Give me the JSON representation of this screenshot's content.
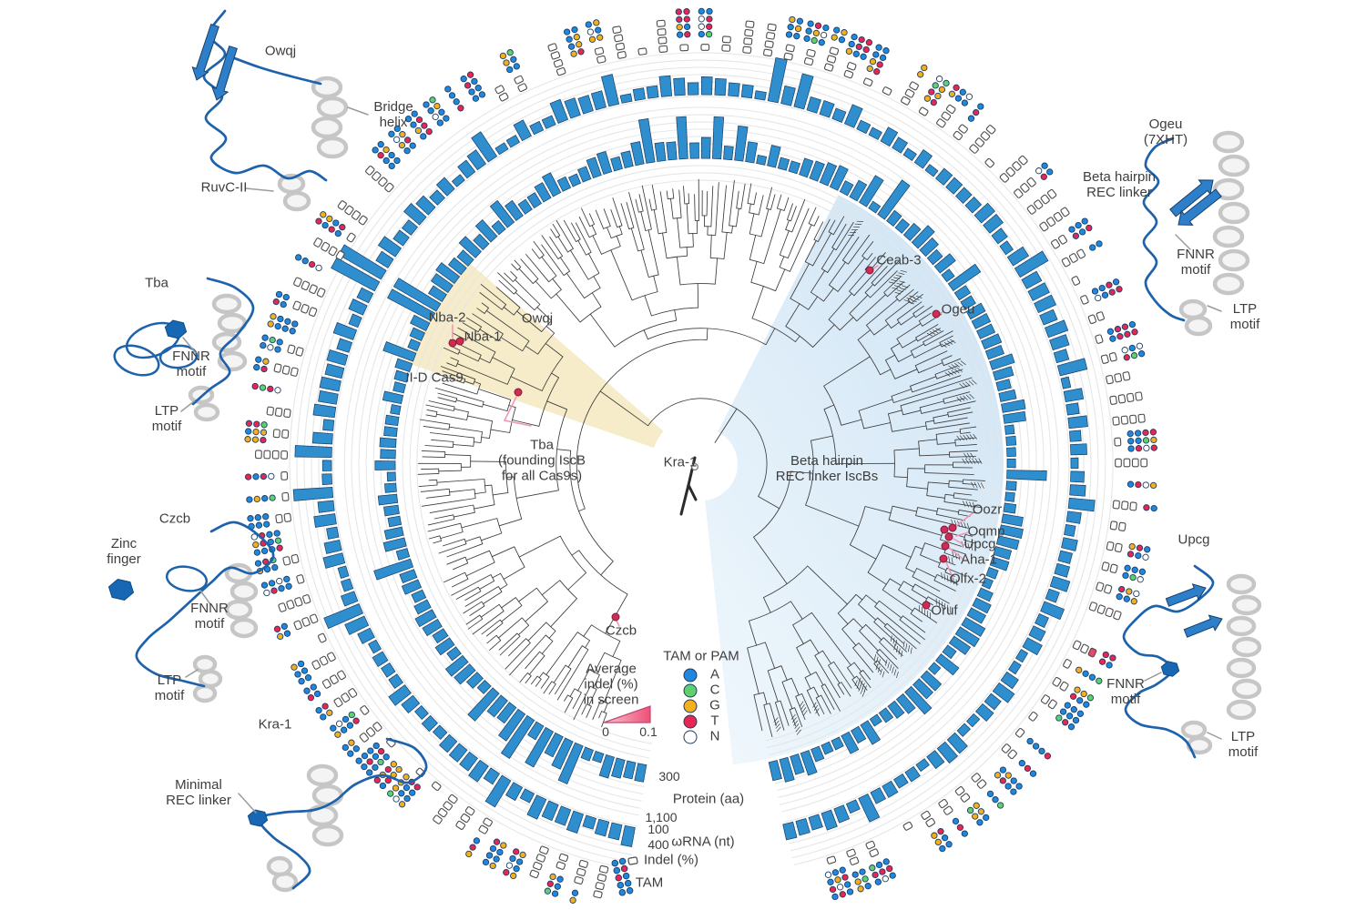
{
  "tree": {
    "labels": [
      "Nba-2",
      "Nba-1",
      "Owqj",
      "II-D Cas9",
      "Tba\n(founding IscB\nfor all Cas9s)",
      "Kra-1",
      "Czcb",
      "Ceab-3",
      "Ogeu",
      "Beta hairpin\nREC linker IscBs",
      "Oozr",
      "Oqmp",
      "Upcg",
      "Aha-1",
      "Olfx-2",
      "Oruf"
    ],
    "highlights": [
      {
        "clade": "II-D Cas9",
        "color": "#f6ecc9"
      },
      {
        "clade": "Beta hairpin REC linker IscBs",
        "color": "#d8e9f6"
      }
    ]
  },
  "structures": [
    {
      "name": "Owqj",
      "annotations": [
        "Bridge\nhelix",
        "RuvC-II"
      ]
    },
    {
      "name": "Tba",
      "annotations": [
        "FNNR\nmotif",
        "LTP\nmotif"
      ]
    },
    {
      "name": "Czcb",
      "annotations": [
        "Zinc\nfinger",
        "FNNR\nmotif",
        "LTP\nmotif"
      ]
    },
    {
      "name": "Kra-1",
      "annotations": [
        "Minimal\nREC linker"
      ]
    },
    {
      "name": "Ogeu\n(7XHT)",
      "annotations": [
        "Beta hairpin\nREC linker",
        "FNNR\nmotif",
        "LTP\nmotif"
      ]
    },
    {
      "name": "Upcg",
      "annotations": [
        "FNNR\nmotif",
        "LTP\nmotif"
      ]
    }
  ],
  "legend": {
    "tam_pam": {
      "title": "TAM or PAM",
      "entries": [
        {
          "base": "A",
          "color": "#1f87de"
        },
        {
          "base": "C",
          "color": "#5fd06e"
        },
        {
          "base": "G",
          "color": "#f3b01c"
        },
        {
          "base": "T",
          "color": "#e82553"
        },
        {
          "base": "N",
          "color": "#ffffff"
        }
      ]
    },
    "indel": {
      "title": "Average\nindel (%)\nin screen",
      "min": "0",
      "max": "0.1",
      "gradient_low": "#f8c5d2",
      "gradient_high": "#ee5077"
    }
  },
  "axis": {
    "protein": {
      "min": "300",
      "max": "1,100",
      "label": "Protein (aa)"
    },
    "rna": {
      "min": "100",
      "max": "400",
      "label": "ωRNA (nt)"
    },
    "indel_ring_label": "Indel (%)",
    "tam_ring_label": "TAM"
  },
  "colors": {
    "bars": "#2f8ecd",
    "bar_outline": "#1b3f66",
    "gridline": "#e6e6e6",
    "tree": "#3c3c3c",
    "marker_red": "#cf2c55",
    "ribbon_blue": "#1d62ab",
    "sheet_blue": "#2e7fc9",
    "helix_gray": "#c6c6c6",
    "wedge_yellow": "#f6ecc9",
    "wedge_blue_light": "#cfe4f5",
    "dot_A": "#1f87de",
    "dot_C": "#5fd06e",
    "dot_G": "#f3b01c",
    "dot_T": "#e82553",
    "dot_N": "#ffffff",
    "square_outline": "#4d4d4d",
    "leader_pink": "#f096b1",
    "leader_gray": "#9b9b9b"
  }
}
